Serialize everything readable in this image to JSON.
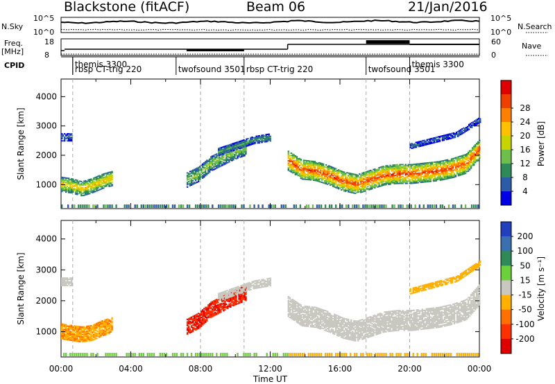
{
  "header": {
    "station": "Blackstone (fitACF)",
    "beam": "Beam 06",
    "date": "21/Jan/2016"
  },
  "side_labels": {
    "nsky": "N.Sky",
    "nsearch": "N.Search",
    "freq": "Freq.",
    "mhz": "[MHz]",
    "nave": "Nave",
    "cpid": "CPID",
    "noise_ticks": [
      "10^5",
      "10^0"
    ],
    "freq_ticks": [
      "18",
      "8"
    ],
    "nave_ticks": [
      "60",
      "0"
    ]
  },
  "cpid_segments": [
    {
      "name": "themis 3300",
      "start": 0.67,
      "end": 0.67
    },
    {
      "name": "rbsp CT-trig 220",
      "start": 0.67,
      "end": 6.6
    },
    {
      "name": "twofsound 3501",
      "start": 6.6,
      "end": 10.5
    },
    {
      "name": "rbsp CT-trig 220",
      "start": 10.5,
      "end": 17.5
    },
    {
      "name": "twofsound 3501",
      "start": 17.5,
      "end": 20.0
    },
    {
      "name": "themis 3300",
      "start": 20.0,
      "end": 24.0
    }
  ],
  "colors": {
    "power": [
      "#0000e6",
      "#2c5ca8",
      "#2e8b57",
      "#6cc04a",
      "#c8d400",
      "#ffc000",
      "#ff8000",
      "#f04000",
      "#e00000"
    ],
    "velocity": [
      "#2040c0",
      "#3a70b0",
      "#2e8b57",
      "#6cd03a",
      "#c8c8c0",
      "#ffb000",
      "#ff7000",
      "#ff3000",
      "#e00000"
    ],
    "nsky_line": "#000000"
  },
  "chart_data": [
    {
      "type": "heatmap",
      "name": "power",
      "ylabel": "Slant Range [km]",
      "colorbar_label": "Power [dB]",
      "colorbar_ticks": [
        "4",
        "8",
        "12",
        "16",
        "20",
        "24",
        "28"
      ],
      "y_ticks": [
        "1000",
        "2000",
        "3000",
        "4000"
      ],
      "ylim": [
        180,
        4600
      ],
      "clim": [
        0,
        32
      ],
      "bands": [
        {
          "t0": 0.0,
          "t1": 2.9,
          "center": [
            1000,
            950,
            850,
            950,
            1100,
            1200
          ],
          "width": 500,
          "peak": 20
        },
        {
          "t0": 7.2,
          "t1": 10.6,
          "center": [
            1150,
            1350,
            1700,
            1900,
            2100,
            2250
          ],
          "width": 500,
          "peak": 14
        },
        {
          "t0": 13.0,
          "t1": 24.0,
          "center": [
            1800,
            1500,
            1450,
            1300,
            1100,
            1000,
            1150,
            1300,
            1350,
            1350,
            1400,
            1450,
            1550,
            1700,
            2200
          ],
          "width": 650,
          "peak": 27
        },
        {
          "t0": 9.0,
          "t1": 12.0,
          "center": [
            2100,
            2300,
            2500,
            2600
          ],
          "width": 250,
          "peak": 10
        },
        {
          "t0": 20.0,
          "t1": 24.0,
          "center": [
            2300,
            2500,
            2700,
            3200
          ],
          "width": 180,
          "peak": 6
        },
        {
          "t0": 0.0,
          "t1": 0.6,
          "center": [
            2600,
            2600
          ],
          "width": 250,
          "peak": 6
        }
      ]
    },
    {
      "type": "heatmap",
      "name": "velocity",
      "ylabel": "Slant Range [km]",
      "xlabel": "Time UT",
      "colorbar_label": "Velocity [m s⁻¹]",
      "colorbar_ticks": [
        "200",
        "100",
        "50",
        "15",
        "-15",
        "-50",
        "-100",
        "-200"
      ],
      "y_ticks": [
        "1000",
        "2000",
        "3000",
        "4000"
      ],
      "x_ticks": [
        "00:00",
        "04:00",
        "08:00",
        "12:00",
        "16:00",
        "20:00",
        "00:00"
      ],
      "xlim": [
        0,
        24
      ],
      "ylim": [
        180,
        4600
      ],
      "clim": [
        -200,
        200
      ],
      "bands": [
        {
          "t0": 0.0,
          "t1": 2.9,
          "center": [
            1000,
            950,
            900,
            950,
            1100,
            1200
          ],
          "width": 500,
          "value": -60
        },
        {
          "t0": 7.2,
          "t1": 10.6,
          "center": [
            1150,
            1350,
            1700,
            1900,
            2100,
            2250
          ],
          "width": 500,
          "value": -150
        },
        {
          "t0": 13.0,
          "t1": 24.0,
          "center": [
            1800,
            1500,
            1450,
            1300,
            1100,
            1000,
            1150,
            1300,
            1350,
            1350,
            1400,
            1450,
            1550,
            1700,
            2200
          ],
          "width": 650,
          "value": 0
        },
        {
          "t0": 9.0,
          "t1": 12.0,
          "center": [
            2100,
            2300,
            2500,
            2600
          ],
          "width": 250,
          "value": 0
        },
        {
          "t0": 20.0,
          "t1": 24.0,
          "center": [
            2300,
            2500,
            2700,
            3200
          ],
          "width": 180,
          "value": -40
        },
        {
          "t0": 0.0,
          "t1": 0.6,
          "center": [
            2600,
            2600
          ],
          "width": 250,
          "value": 0
        }
      ]
    }
  ]
}
